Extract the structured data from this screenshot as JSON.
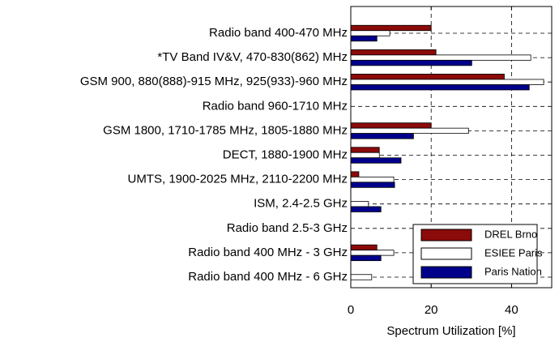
{
  "chart_data": {
    "type": "bar",
    "orientation": "horizontal",
    "x_label": "Spectrum Utilization [%]",
    "categories": [
      "Radio band 400-470 MHz",
      "*TV Band IV&V, 470-830(862) MHz",
      "GSM 900, 880(888)-915 MHz, 925(933)-960 MHz",
      "Radio band 960-1710 MHz",
      "GSM 1800, 1710-1785 MHz, 1805-1880 MHz",
      "DECT, 1880-1900 MHz",
      "UMTS, 1900-2025 MHz, 2110-2200 MHz",
      "ISM, 2.4-2.5 GHz",
      "Radio band 2.5-3 GHz",
      "Radio band 400 MHz - 3 GHz",
      "Radio band 400 MHz - 6 GHz"
    ],
    "series": [
      {
        "name": "DREL Brno",
        "color": "#8b0a0a",
        "values": [
          20,
          21.2,
          38.2,
          0,
          20,
          7.1,
          2,
          0,
          0,
          6.5,
          0
        ]
      },
      {
        "name": "ESIEE Paris",
        "color": "#ffffff",
        "values": [
          9.7,
          44.8,
          48,
          0,
          29.3,
          7.1,
          10.7,
          4.4,
          0,
          10.7,
          5.2
        ]
      },
      {
        "name": "Paris Nation",
        "color": "#00008b",
        "values": [
          6.5,
          30.1,
          44.4,
          0,
          15.6,
          12.5,
          10.9,
          7.5,
          0,
          7.5,
          0
        ]
      }
    ],
    "xlim": [
      0,
      50
    ],
    "xticks": [
      0,
      20,
      40
    ],
    "grid": true,
    "legend": "lower right"
  }
}
